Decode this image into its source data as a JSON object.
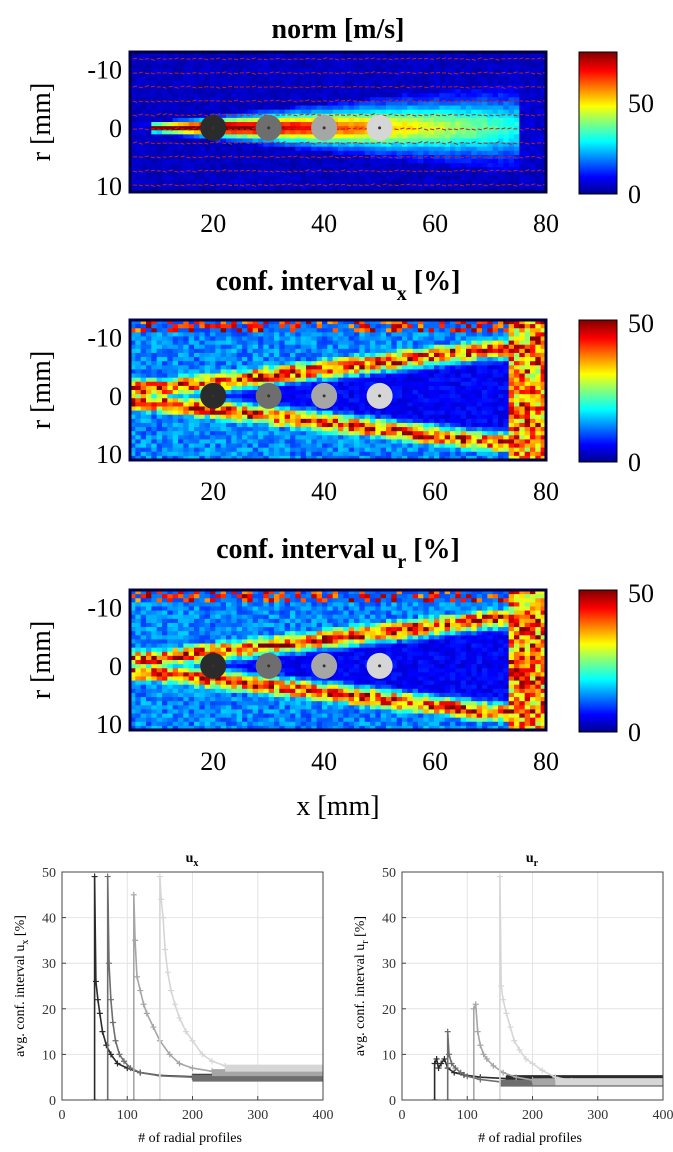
{
  "figure": {
    "panels": [
      {
        "title": "norm [m/s]",
        "title_sub": "",
        "ylabel": "r [mm]",
        "xlabel": "",
        "x_ticks": [
          "20",
          "40",
          "60",
          "80"
        ],
        "y_ticks": [
          "-10",
          "0",
          "10"
        ],
        "colorbar_ticks": [
          "50",
          "0"
        ],
        "colorbar_max": 75
      },
      {
        "title": "conf. interval u",
        "title_sub": "x",
        "title_suffix": " [%]",
        "ylabel": "r [mm]",
        "xlabel": "",
        "x_ticks": [
          "20",
          "40",
          "60",
          "80"
        ],
        "y_ticks": [
          "-10",
          "0",
          "10"
        ],
        "colorbar_ticks": [
          "50",
          "0"
        ],
        "colorbar_max": 50
      },
      {
        "title": "conf. interval u",
        "title_sub": "r",
        "title_suffix": " [%]",
        "ylabel": "r [mm]",
        "xlabel": "x [mm]",
        "x_ticks": [
          "20",
          "40",
          "60",
          "80"
        ],
        "y_ticks": [
          "-10",
          "0",
          "10"
        ],
        "colorbar_ticks": [
          "50",
          "0"
        ],
        "colorbar_max": 50
      }
    ],
    "probe_positions_mm": [
      20,
      30,
      40,
      50
    ],
    "probe_colors": [
      "#2b2b2b",
      "#6e6e6e",
      "#a6a6a6",
      "#d6d6d6"
    ]
  },
  "chart_data": [
    {
      "type": "heatmap",
      "title": "norm [m/s]",
      "xlabel": "",
      "ylabel": "r [mm]",
      "xlim": [
        5,
        80
      ],
      "ylim": [
        -13,
        11
      ],
      "clim": [
        0,
        75
      ],
      "colormap": "jet",
      "markers_x_mm": [
        20,
        30,
        40,
        50
      ],
      "markers_r_mm": [
        0,
        0,
        0,
        0
      ]
    },
    {
      "type": "heatmap",
      "title": "conf. interval u_x [%]",
      "xlabel": "",
      "ylabel": "r [mm]",
      "xlim": [
        5,
        80
      ],
      "ylim": [
        -13,
        11
      ],
      "clim": [
        0,
        50
      ],
      "colormap": "jet",
      "markers_x_mm": [
        20,
        30,
        40,
        50
      ],
      "markers_r_mm": [
        0,
        0,
        0,
        0
      ]
    },
    {
      "type": "heatmap",
      "title": "conf. interval u_r [%]",
      "xlabel": "x [mm]",
      "ylabel": "r [mm]",
      "xlim": [
        5,
        80
      ],
      "ylim": [
        -13,
        11
      ],
      "clim": [
        0,
        50
      ],
      "colormap": "jet",
      "markers_x_mm": [
        20,
        30,
        40,
        50
      ],
      "markers_r_mm": [
        0,
        0,
        0,
        0
      ]
    },
    {
      "type": "line",
      "title": "u_x",
      "title_main": "u",
      "title_sub": "x",
      "xlabel": "# of radial profiles",
      "ylabel_main": "avg. conf. interval u",
      "ylabel_sub": "x",
      "ylabel_suffix": " [%]",
      "xlim": [
        0,
        400
      ],
      "ylim": [
        0,
        50
      ],
      "x_ticks": [
        0,
        100,
        200,
        300,
        400
      ],
      "y_ticks": [
        0,
        10,
        20,
        30,
        40,
        50
      ],
      "grid": true,
      "series": [
        {
          "color": "#2b2b2b",
          "start": 50,
          "points": [
            [
              50,
              0
            ],
            [
              50,
              49
            ],
            [
              52,
              26
            ],
            [
              55,
              22
            ],
            [
              58,
              19
            ],
            [
              62,
              15
            ],
            [
              68,
              12
            ],
            [
              75,
              10
            ],
            [
              85,
              8
            ],
            [
              100,
              7
            ],
            [
              120,
              6
            ],
            [
              150,
              5.4
            ],
            [
              200,
              5.1
            ],
            [
              250,
              5
            ],
            [
              300,
              5
            ],
            [
              400,
              5
            ]
          ]
        },
        {
          "color": "#6e6e6e",
          "start": 70,
          "points": [
            [
              70,
              0
            ],
            [
              70,
              49
            ],
            [
              72,
              30
            ],
            [
              75,
              22
            ],
            [
              78,
              17
            ],
            [
              82,
              13
            ],
            [
              88,
              10
            ],
            [
              95,
              8.5
            ],
            [
              105,
              7
            ],
            [
              120,
              6
            ],
            [
              150,
              5.3
            ],
            [
              200,
              5
            ],
            [
              250,
              4.9
            ],
            [
              300,
              4.8
            ],
            [
              400,
              4.8
            ]
          ]
        },
        {
          "color": "#a6a6a6",
          "start": 110,
          "points": [
            [
              110,
              0
            ],
            [
              110,
              45
            ],
            [
              112,
              35
            ],
            [
              115,
              27
            ],
            [
              120,
              24
            ],
            [
              125,
              21
            ],
            [
              130,
              19
            ],
            [
              140,
              16
            ],
            [
              150,
              13
            ],
            [
              165,
              10
            ],
            [
              180,
              8
            ],
            [
              200,
              7
            ],
            [
              230,
              6.3
            ],
            [
              260,
              6
            ],
            [
              300,
              6
            ],
            [
              400,
              6
            ]
          ]
        },
        {
          "color": "#d6d6d6",
          "start": 150,
          "points": [
            [
              150,
              0
            ],
            [
              150,
              49
            ],
            [
              152,
              44
            ],
            [
              155,
              40
            ],
            [
              158,
              33
            ],
            [
              162,
              28
            ],
            [
              167,
              24
            ],
            [
              173,
              21
            ],
            [
              180,
              18
            ],
            [
              190,
              15
            ],
            [
              200,
              13
            ],
            [
              215,
              10
            ],
            [
              230,
              8.5
            ],
            [
              250,
              7.5
            ],
            [
              280,
              7
            ],
            [
              320,
              7
            ],
            [
              400,
              7
            ]
          ]
        }
      ]
    },
    {
      "type": "line",
      "title": "u_r",
      "title_main": "u",
      "title_sub": "r",
      "xlabel": "# of radial profiles",
      "ylabel_main": "avg. conf. interval u",
      "ylabel_sub": "r",
      "ylabel_suffix": " [%]",
      "xlim": [
        0,
        400
      ],
      "ylim": [
        0,
        50
      ],
      "x_ticks": [
        0,
        100,
        200,
        300,
        400
      ],
      "y_ticks": [
        0,
        10,
        20,
        30,
        40,
        50
      ],
      "grid": true,
      "series": [
        {
          "color": "#2b2b2b",
          "start": 50,
          "points": [
            [
              50,
              0
            ],
            [
              50,
              8
            ],
            [
              53,
              9
            ],
            [
              56,
              7
            ],
            [
              60,
              8
            ],
            [
              65,
              9
            ],
            [
              70,
              7
            ],
            [
              80,
              6
            ],
            [
              95,
              5.5
            ],
            [
              120,
              5
            ],
            [
              160,
              4.7
            ],
            [
              220,
              4.7
            ],
            [
              300,
              4.7
            ],
            [
              400,
              4.7
            ]
          ]
        },
        {
          "color": "#6e6e6e",
          "start": 70,
          "points": [
            [
              70,
              0
            ],
            [
              70,
              15
            ],
            [
              72,
              10
            ],
            [
              76,
              8
            ],
            [
              82,
              7
            ],
            [
              90,
              6
            ],
            [
              100,
              5.2
            ],
            [
              120,
              4.5
            ],
            [
              150,
              4
            ],
            [
              200,
              3.8
            ],
            [
              300,
              3.7
            ],
            [
              400,
              3.7
            ]
          ]
        },
        {
          "color": "#a6a6a6",
          "start": 110,
          "points": [
            [
              110,
              0
            ],
            [
              110,
              20
            ],
            [
              113,
              21
            ],
            [
              116,
              15
            ],
            [
              120,
              12
            ],
            [
              125,
              10
            ],
            [
              130,
              9
            ],
            [
              140,
              7.5
            ],
            [
              155,
              6
            ],
            [
              175,
              5
            ],
            [
              200,
              4.4
            ],
            [
              250,
              4
            ],
            [
              300,
              4
            ],
            [
              400,
              4
            ]
          ]
        },
        {
          "color": "#d6d6d6",
          "start": 150,
          "points": [
            [
              150,
              0
            ],
            [
              150,
              49
            ],
            [
              152,
              25
            ],
            [
              155,
              22
            ],
            [
              160,
              19
            ],
            [
              166,
              16
            ],
            [
              172,
              13
            ],
            [
              180,
              11
            ],
            [
              190,
              9
            ],
            [
              200,
              8
            ],
            [
              215,
              6.5
            ],
            [
              235,
              5
            ],
            [
              260,
              4.2
            ],
            [
              300,
              4
            ],
            [
              400,
              4
            ]
          ]
        }
      ]
    }
  ]
}
